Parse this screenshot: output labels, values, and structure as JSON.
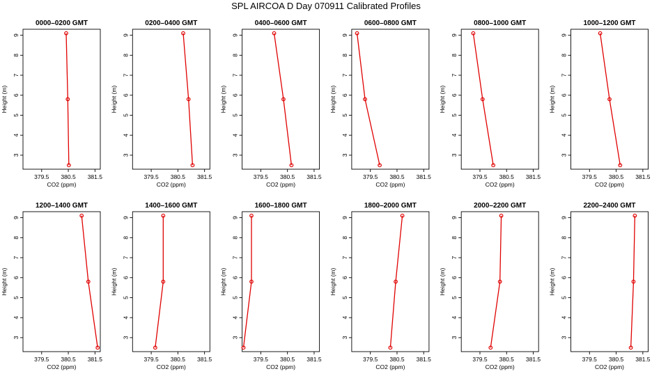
{
  "figure_title": "SPL AIRCOA D  Day 070911  Calibrated Profiles",
  "colors": {
    "series": "#e00000",
    "axes": "#000000",
    "background": "#ffffff"
  },
  "chart_data": [
    {
      "type": "line",
      "title": "0000–0200 GMT",
      "xlabel": "CO2 (ppm)",
      "ylabel": "Height (m)",
      "xlim": [
        378.8,
        381.7
      ],
      "ylim": [
        2.3,
        9.3
      ],
      "xticks": [
        "379.5",
        "380.5",
        "381.5"
      ],
      "yticks": [
        "3",
        "4",
        "5",
        "6",
        "7",
        "8",
        "9"
      ],
      "x": [
        380.42,
        380.48,
        380.52
      ],
      "y": [
        9.1,
        5.8,
        2.5
      ]
    },
    {
      "type": "line",
      "title": "0200–0400 GMT",
      "xlabel": "CO2 (ppm)",
      "ylabel": "Height (m)",
      "xlim": [
        378.8,
        381.7
      ],
      "ylim": [
        2.3,
        9.3
      ],
      "xticks": [
        "379.5",
        "380.5",
        "381.5"
      ],
      "yticks": [
        "3",
        "4",
        "5",
        "6",
        "7",
        "8",
        "9"
      ],
      "x": [
        380.7,
        380.9,
        381.05
      ],
      "y": [
        9.1,
        5.8,
        2.5
      ]
    },
    {
      "type": "line",
      "title": "0400–0600 GMT",
      "xlabel": "CO2 (ppm)",
      "ylabel": "Height (m)",
      "xlim": [
        378.8,
        381.7
      ],
      "ylim": [
        2.3,
        9.3
      ],
      "xticks": [
        "379.5",
        "380.5",
        "381.5"
      ],
      "yticks": [
        "3",
        "4",
        "5",
        "6",
        "7",
        "8",
        "9"
      ],
      "x": [
        380.0,
        380.35,
        380.65
      ],
      "y": [
        9.1,
        5.8,
        2.5
      ]
    },
    {
      "type": "line",
      "title": "0600–0800 GMT",
      "xlabel": "CO2 (ppm)",
      "ylabel": "Height (m)",
      "xlim": [
        378.8,
        381.7
      ],
      "ylim": [
        2.3,
        9.3
      ],
      "xticks": [
        "379.5",
        "380.5",
        "381.5"
      ],
      "yticks": [
        "3",
        "4",
        "5",
        "6",
        "7",
        "8",
        "9"
      ],
      "x": [
        379.0,
        379.3,
        379.85
      ],
      "y": [
        9.1,
        5.8,
        2.5
      ]
    },
    {
      "type": "line",
      "title": "0800–1000 GMT",
      "xlabel": "CO2 (ppm)",
      "ylabel": "Height (m)",
      "xlim": [
        378.8,
        381.7
      ],
      "ylim": [
        2.3,
        9.3
      ],
      "xticks": [
        "379.5",
        "380.5",
        "381.5"
      ],
      "yticks": [
        "3",
        "4",
        "5",
        "6",
        "7",
        "8",
        "9"
      ],
      "x": [
        379.25,
        379.6,
        380.0
      ],
      "y": [
        9.1,
        5.8,
        2.5
      ]
    },
    {
      "type": "line",
      "title": "1000–1200 GMT",
      "xlabel": "CO2 (ppm)",
      "ylabel": "Height (m)",
      "xlim": [
        378.8,
        381.7
      ],
      "ylim": [
        2.3,
        9.3
      ],
      "xticks": [
        "379.5",
        "380.5",
        "381.5"
      ],
      "yticks": [
        "3",
        "4",
        "5",
        "6",
        "7",
        "8",
        "9"
      ],
      "x": [
        379.9,
        380.25,
        380.65
      ],
      "y": [
        9.1,
        5.8,
        2.5
      ]
    },
    {
      "type": "line",
      "title": "1200–1400 GMT",
      "xlabel": "CO2 (ppm)",
      "ylabel": "Height (m)",
      "xlim": [
        378.8,
        381.7
      ],
      "ylim": [
        2.3,
        9.3
      ],
      "xticks": [
        "379.5",
        "380.5",
        "381.5"
      ],
      "yticks": [
        "3",
        "4",
        "5",
        "6",
        "7",
        "8",
        "9"
      ],
      "x": [
        381.0,
        381.25,
        381.6
      ],
      "y": [
        9.1,
        5.8,
        2.5
      ]
    },
    {
      "type": "line",
      "title": "1400–1600 GMT",
      "xlabel": "CO2 (ppm)",
      "ylabel": "Height (m)",
      "xlim": [
        378.8,
        381.7
      ],
      "ylim": [
        2.3,
        9.3
      ],
      "xticks": [
        "379.5",
        "380.5",
        "381.5"
      ],
      "yticks": [
        "3",
        "4",
        "5",
        "6",
        "7",
        "8",
        "9"
      ],
      "x": [
        379.95,
        379.95,
        379.65
      ],
      "y": [
        9.1,
        5.8,
        2.5
      ]
    },
    {
      "type": "line",
      "title": "1600–1800 GMT",
      "xlabel": "CO2 (ppm)",
      "ylabel": "Height (m)",
      "xlim": [
        378.8,
        381.7
      ],
      "ylim": [
        2.3,
        9.3
      ],
      "xticks": [
        "379.5",
        "380.5",
        "381.5"
      ],
      "yticks": [
        "3",
        "4",
        "5",
        "6",
        "7",
        "8",
        "9"
      ],
      "x": [
        379.15,
        379.15,
        378.85
      ],
      "y": [
        9.1,
        5.8,
        2.5
      ]
    },
    {
      "type": "line",
      "title": "1800–2000 GMT",
      "xlabel": "CO2 (ppm)",
      "ylabel": "Height (m)",
      "xlim": [
        378.8,
        381.7
      ],
      "ylim": [
        2.3,
        9.3
      ],
      "xticks": [
        "379.5",
        "380.5",
        "381.5"
      ],
      "yticks": [
        "3",
        "4",
        "5",
        "6",
        "7",
        "8",
        "9"
      ],
      "x": [
        380.7,
        380.45,
        380.25
      ],
      "y": [
        9.1,
        5.8,
        2.5
      ]
    },
    {
      "type": "line",
      "title": "2000–2200 GMT",
      "xlabel": "CO2 (ppm)",
      "ylabel": "Height (m)",
      "xlim": [
        378.8,
        381.7
      ],
      "ylim": [
        2.3,
        9.3
      ],
      "xticks": [
        "379.5",
        "380.5",
        "381.5"
      ],
      "yticks": [
        "3",
        "4",
        "5",
        "6",
        "7",
        "8",
        "9"
      ],
      "x": [
        380.3,
        380.25,
        379.9
      ],
      "y": [
        9.1,
        5.8,
        2.5
      ]
    },
    {
      "type": "line",
      "title": "2200–2400 GMT",
      "xlabel": "CO2 (ppm)",
      "ylabel": "Height (m)",
      "xlim": [
        378.8,
        381.7
      ],
      "ylim": [
        2.3,
        9.3
      ],
      "xticks": [
        "379.5",
        "380.5",
        "381.5"
      ],
      "yticks": [
        "3",
        "4",
        "5",
        "6",
        "7",
        "8",
        "9"
      ],
      "x": [
        381.2,
        381.15,
        381.05
      ],
      "y": [
        9.1,
        5.8,
        2.5
      ]
    }
  ]
}
